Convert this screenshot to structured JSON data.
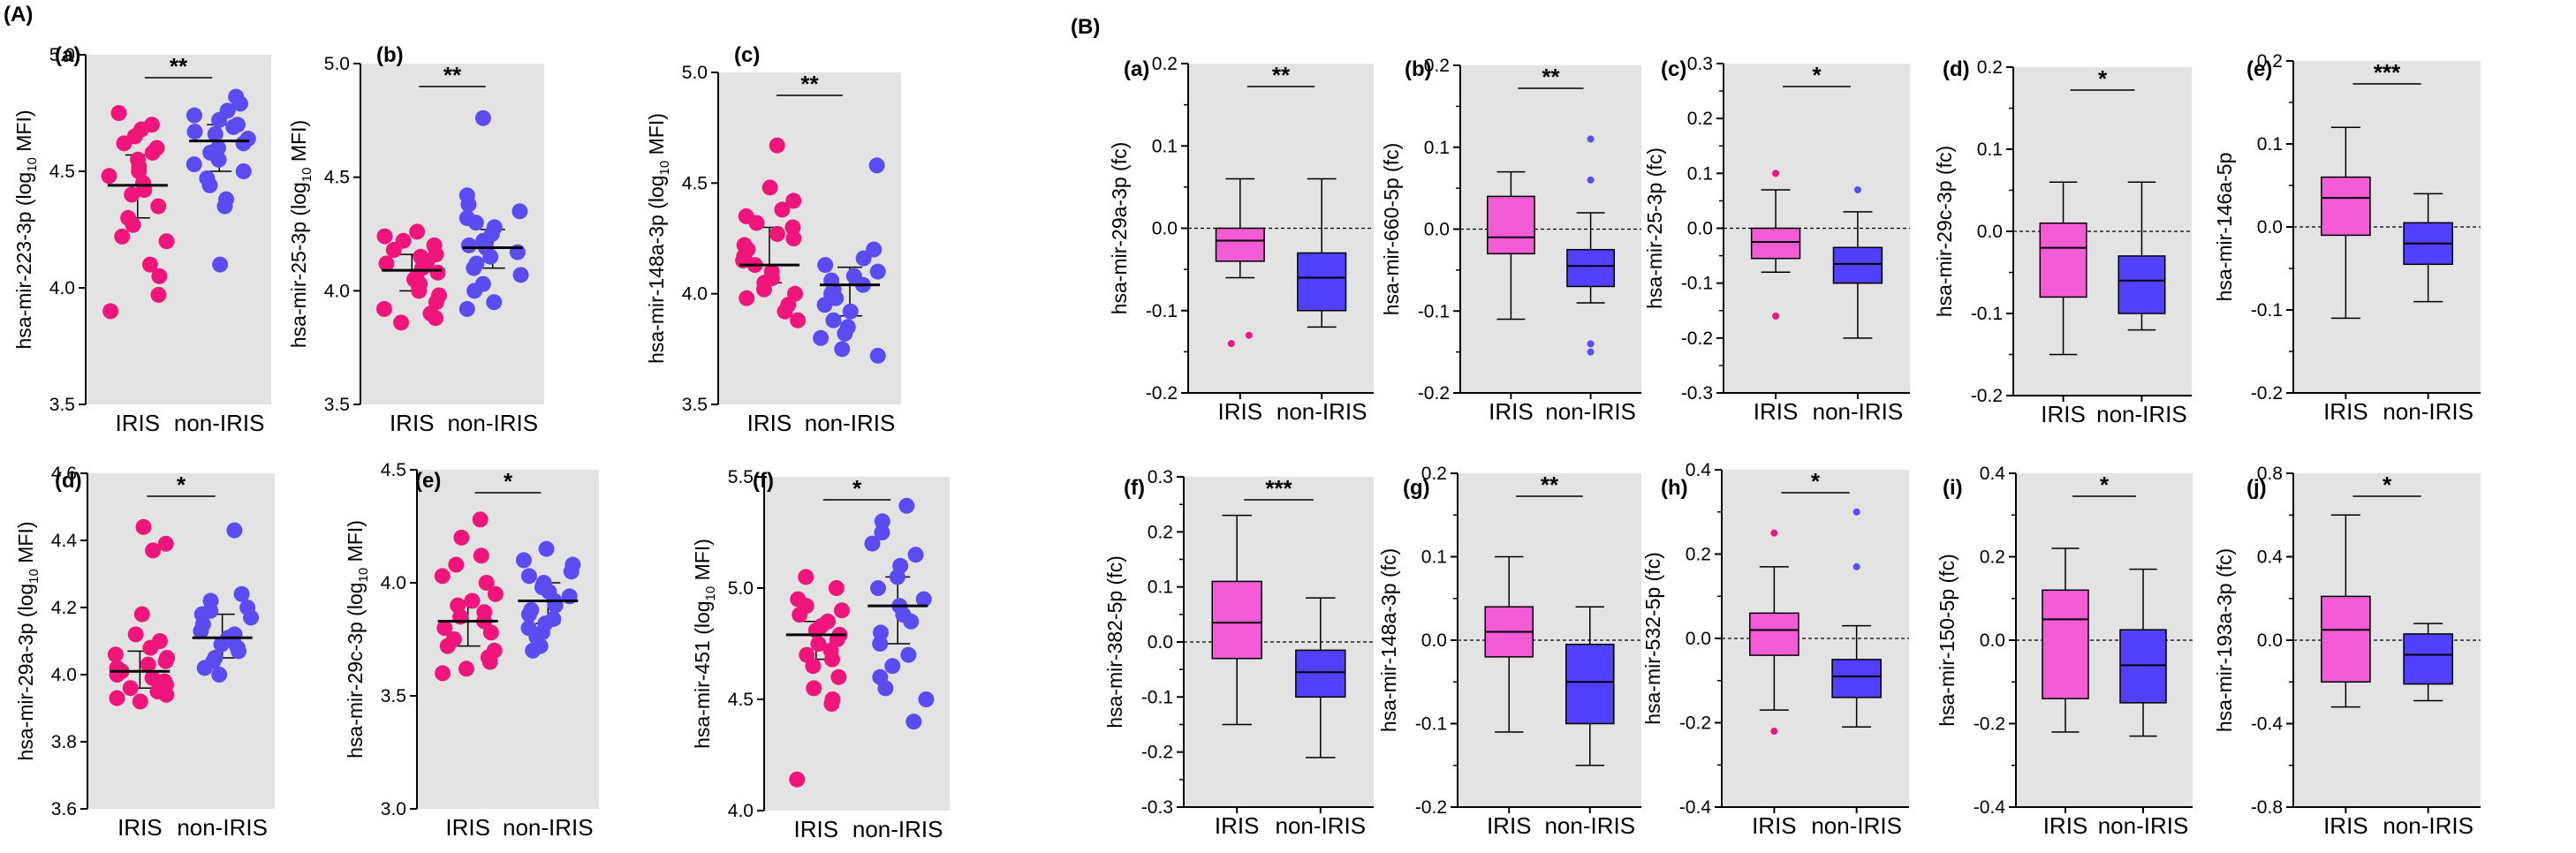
{
  "panels": [
    {
      "id": "A",
      "label": "(A)"
    },
    {
      "id": "B",
      "label": "(B)"
    }
  ],
  "colors": {
    "iris": "#f0157a",
    "non_iris": "#5b4cf2",
    "iris_box": "#f25ad6",
    "non_iris_box": "#5140ff",
    "background": "#e3e3e3"
  },
  "chart_data": [
    {
      "panel": "A",
      "sub": "(a)",
      "type": "scatter",
      "ylabel": "hsa-mir-223-3p (log10 MFI)",
      "ylabel_prefix": "hsa-mir-223-3p (log",
      "ylabel_sub": "10",
      "ylabel_suffix": " MFI)",
      "ylim": [
        3.5,
        5.0
      ],
      "yticks": [
        "3.5",
        "4.0",
        "4.5",
        "5.0"
      ],
      "categories": [
        "IRIS",
        "non-IRIS"
      ],
      "significance": "**",
      "series": [
        {
          "name": "IRIS",
          "median": 4.44,
          "q1": 4.3,
          "q3": 4.57,
          "values": [
            4.75,
            4.7,
            4.68,
            4.65,
            4.62,
            4.6,
            4.58,
            4.55,
            4.52,
            4.5,
            4.48,
            4.45,
            4.42,
            4.4,
            4.35,
            4.3,
            4.27,
            4.22,
            4.2,
            4.1,
            4.05,
            3.97,
            3.9
          ]
        },
        {
          "name": "non-IRIS",
          "median": 4.63,
          "q1": 4.5,
          "q3": 4.7,
          "values": [
            4.82,
            4.79,
            4.76,
            4.74,
            4.72,
            4.7,
            4.69,
            4.67,
            4.66,
            4.64,
            4.62,
            4.6,
            4.58,
            4.55,
            4.53,
            4.5,
            4.47,
            4.44,
            4.38,
            4.35,
            4.1
          ]
        }
      ]
    },
    {
      "panel": "A",
      "sub": "(b)",
      "type": "scatter",
      "ylabel": "hsa-mir-25-3p (log10 MFI)",
      "ylabel_prefix": "hsa-mir-25-3p (log",
      "ylabel_sub": "10",
      "ylabel_suffix": " MFI)",
      "ylim": [
        3.5,
        5.0
      ],
      "yticks": [
        "3.5",
        "4.0",
        "4.5",
        "5.0"
      ],
      "categories": [
        "IRIS",
        "non-IRIS"
      ],
      "significance": "**",
      "series": [
        {
          "name": "IRIS",
          "median": 4.09,
          "q1": 4.0,
          "q3": 4.16,
          "values": [
            4.26,
            4.24,
            4.22,
            4.2,
            4.18,
            4.16,
            4.15,
            4.13,
            4.12,
            4.1,
            4.08,
            4.06,
            4.05,
            4.03,
            4.0,
            3.98,
            3.95,
            3.92,
            3.9,
            3.88,
            3.86
          ]
        },
        {
          "name": "non-IRIS",
          "median": 4.19,
          "q1": 4.1,
          "q3": 4.27,
          "values": [
            4.76,
            4.42,
            4.38,
            4.35,
            4.32,
            4.3,
            4.28,
            4.25,
            4.22,
            4.2,
            4.19,
            4.17,
            4.15,
            4.12,
            4.1,
            4.07,
            4.03,
            4.0,
            3.95,
            3.92
          ]
        }
      ]
    },
    {
      "panel": "A",
      "sub": "(c)",
      "type": "scatter",
      "ylabel": "hsa-mir-148a-3p (log10 MFI)",
      "ylabel_prefix": "hsa-mir-148a-3p (log",
      "ylabel_sub": "10",
      "ylabel_suffix": " MFI)",
      "ylim": [
        3.5,
        5.0
      ],
      "yticks": [
        "3.5",
        "4.0",
        "4.5",
        "5.0"
      ],
      "categories": [
        "IRIS",
        "non-IRIS"
      ],
      "significance": "**",
      "series": [
        {
          "name": "IRIS",
          "median": 4.13,
          "q1": 4.05,
          "q3": 4.3,
          "values": [
            4.67,
            4.48,
            4.42,
            4.38,
            4.35,
            4.32,
            4.3,
            4.27,
            4.25,
            4.22,
            4.2,
            4.17,
            4.15,
            4.13,
            4.1,
            4.07,
            4.05,
            4.02,
            4.0,
            3.98,
            3.95,
            3.92,
            3.88
          ]
        },
        {
          "name": "non-IRIS",
          "median": 4.04,
          "q1": 3.9,
          "q3": 4.12,
          "values": [
            4.58,
            4.2,
            4.16,
            4.13,
            4.1,
            4.08,
            4.06,
            4.04,
            4.02,
            4.0,
            3.98,
            3.95,
            3.92,
            3.88,
            3.85,
            3.82,
            3.8,
            3.75,
            3.72
          ]
        }
      ]
    },
    {
      "panel": "A",
      "sub": "(d)",
      "type": "scatter",
      "ylabel": "hsa-mir-29a-3p (log10 MFI)",
      "ylabel_prefix": "hsa-mir-29a-3p (log",
      "ylabel_sub": "10",
      "ylabel_suffix": " MFI)",
      "ylim": [
        3.6,
        4.6
      ],
      "yticks": [
        "3.6",
        "3.8",
        "4.0",
        "4.2",
        "4.4",
        "4.6"
      ],
      "categories": [
        "IRIS",
        "non-IRIS"
      ],
      "significance": "*",
      "series": [
        {
          "name": "IRIS",
          "median": 4.01,
          "q1": 3.96,
          "q3": 4.07,
          "values": [
            4.44,
            4.39,
            4.37,
            4.18,
            4.12,
            4.1,
            4.08,
            4.06,
            4.05,
            4.04,
            4.03,
            4.02,
            4.01,
            4.0,
            3.99,
            3.98,
            3.97,
            3.96,
            3.95,
            3.94,
            3.93,
            3.92
          ]
        },
        {
          "name": "non-IRIS",
          "median": 4.11,
          "q1": 4.05,
          "q3": 4.18,
          "values": [
            4.43,
            4.24,
            4.22,
            4.2,
            4.19,
            4.18,
            4.17,
            4.15,
            4.13,
            4.12,
            4.11,
            4.1,
            4.09,
            4.08,
            4.07,
            4.05,
            4.04,
            4.02,
            4.0
          ]
        }
      ]
    },
    {
      "panel": "A",
      "sub": "(e)",
      "type": "scatter",
      "ylabel": "hsa-mir-29c-3p (log10 MFI)",
      "ylabel_prefix": "hsa-mir-29c-3p (log",
      "ylabel_sub": "10",
      "ylabel_suffix": " MFI)",
      "ylim": [
        3.0,
        4.5
      ],
      "yticks": [
        "3.0",
        "3.5",
        "4.0",
        "4.5"
      ],
      "categories": [
        "IRIS",
        "non-IRIS"
      ],
      "significance": "*",
      "series": [
        {
          "name": "IRIS",
          "median": 3.83,
          "q1": 3.72,
          "q3": 3.92,
          "values": [
            4.28,
            4.2,
            4.12,
            4.08,
            4.03,
            4.0,
            3.95,
            3.92,
            3.9,
            3.87,
            3.85,
            3.83,
            3.8,
            3.78,
            3.75,
            3.72,
            3.7,
            3.67,
            3.65,
            3.62,
            3.6
          ]
        },
        {
          "name": "non-IRIS",
          "median": 3.92,
          "q1": 3.82,
          "q3": 4.0,
          "values": [
            4.15,
            4.1,
            4.08,
            4.05,
            4.03,
            4.0,
            3.98,
            3.96,
            3.94,
            3.92,
            3.9,
            3.88,
            3.86,
            3.84,
            3.82,
            3.8,
            3.78,
            3.76,
            3.72,
            3.7
          ]
        }
      ]
    },
    {
      "panel": "A",
      "sub": "(f)",
      "type": "scatter",
      "ylabel": "hsa-mir-451 (log10 MFI)",
      "ylabel_prefix": "hsa-mir-451 (log",
      "ylabel_sub": "10",
      "ylabel_suffix": " MFI)",
      "ylim": [
        4.0,
        5.5
      ],
      "yticks": [
        "4.0",
        "4.5",
        "5.0",
        "5.5"
      ],
      "categories": [
        "IRIS",
        "non-IRIS"
      ],
      "significance": "*",
      "series": [
        {
          "name": "IRIS",
          "median": 4.79,
          "q1": 4.68,
          "q3": 4.85,
          "values": [
            5.05,
            5.0,
            4.95,
            4.92,
            4.9,
            4.88,
            4.85,
            4.83,
            4.81,
            4.79,
            4.77,
            4.75,
            4.72,
            4.7,
            4.68,
            4.65,
            4.6,
            4.55,
            4.5,
            4.48,
            4.14
          ]
        },
        {
          "name": "non-IRIS",
          "median": 4.92,
          "q1": 4.75,
          "q3": 5.05,
          "values": [
            5.37,
            5.3,
            5.25,
            5.2,
            5.15,
            5.1,
            5.05,
            5.0,
            4.95,
            4.92,
            4.88,
            4.85,
            4.8,
            4.75,
            4.7,
            4.65,
            4.6,
            4.55,
            4.5,
            4.4
          ]
        }
      ]
    },
    {
      "panel": "B",
      "sub": "(a)",
      "type": "box",
      "ylabel": "hsa-mir-29a-3p (fc)",
      "ylim": [
        -0.2,
        0.2
      ],
      "yticks": [
        "-0.2",
        "-0.1",
        "0.0",
        "0.1",
        "0.2"
      ],
      "categories": [
        "IRIS",
        "non-IRIS"
      ],
      "significance": "**",
      "series": [
        {
          "name": "IRIS",
          "whisker_low": -0.06,
          "q1": -0.04,
          "median": -0.015,
          "q3": 0.0,
          "whisker_high": 0.06,
          "outliers": [
            -0.14,
            -0.13
          ]
        },
        {
          "name": "non-IRIS",
          "whisker_low": -0.12,
          "q1": -0.1,
          "median": -0.06,
          "q3": -0.03,
          "whisker_high": 0.06,
          "outliers": []
        }
      ]
    },
    {
      "panel": "B",
      "sub": "(b)",
      "type": "box",
      "ylabel": "hsa-mir-660-5p (fc)",
      "ylim": [
        -0.2,
        0.2
      ],
      "yticks": [
        "-0.2",
        "-0.1",
        "0.0",
        "0.1",
        "0.2"
      ],
      "categories": [
        "IRIS",
        "non-IRIS"
      ],
      "significance": "**",
      "series": [
        {
          "name": "IRIS",
          "whisker_low": -0.11,
          "q1": -0.03,
          "median": -0.01,
          "q3": 0.04,
          "whisker_high": 0.07,
          "outliers": []
        },
        {
          "name": "non-IRIS",
          "whisker_low": -0.09,
          "q1": -0.07,
          "median": -0.045,
          "q3": -0.025,
          "whisker_high": 0.02,
          "outliers": [
            0.11,
            0.06,
            -0.14,
            -0.15
          ]
        }
      ]
    },
    {
      "panel": "B",
      "sub": "(c)",
      "type": "box",
      "ylabel": "hsa-mir-25-3p (fc)",
      "ylim": [
        -0.3,
        0.3
      ],
      "yticks": [
        "-0.3",
        "-0.2",
        "-0.1",
        "0.0",
        "0.1",
        "0.2",
        "0.3"
      ],
      "categories": [
        "IRIS",
        "non-IRIS"
      ],
      "significance": "*",
      "series": [
        {
          "name": "IRIS",
          "whisker_low": -0.08,
          "q1": -0.055,
          "median": -0.025,
          "q3": 0.0,
          "whisker_high": 0.07,
          "outliers": [
            0.1,
            -0.16
          ]
        },
        {
          "name": "non-IRIS",
          "whisker_low": -0.2,
          "q1": -0.1,
          "median": -0.065,
          "q3": -0.035,
          "whisker_high": 0.03,
          "outliers": [
            0.07
          ]
        }
      ]
    },
    {
      "panel": "B",
      "sub": "(d)",
      "type": "box",
      "ylabel": "hsa-mir-29c-3p (fc)",
      "ylim": [
        -0.2,
        0.2
      ],
      "yticks": [
        "-0.2",
        "-0.1",
        "0.0",
        "0.1",
        "0.2"
      ],
      "categories": [
        "IRIS",
        "non-IRIS"
      ],
      "significance": "*",
      "series": [
        {
          "name": "IRIS",
          "whisker_low": -0.15,
          "q1": -0.08,
          "median": -0.02,
          "q3": 0.01,
          "whisker_high": 0.06,
          "outliers": []
        },
        {
          "name": "non-IRIS",
          "whisker_low": -0.12,
          "q1": -0.1,
          "median": -0.06,
          "q3": -0.03,
          "whisker_high": 0.06,
          "outliers": []
        }
      ]
    },
    {
      "panel": "B",
      "sub": "(e)",
      "type": "box",
      "ylabel": "hsa-mir-146a-5p",
      "ylim": [
        -0.2,
        0.2
      ],
      "yticks": [
        "-0.2",
        "-0.1",
        "0.0",
        "0.1",
        "0.2"
      ],
      "categories": [
        "IRIS",
        "non-IRIS"
      ],
      "significance": "***",
      "series": [
        {
          "name": "IRIS",
          "whisker_low": -0.11,
          "q1": -0.01,
          "median": 0.035,
          "q3": 0.06,
          "whisker_high": 0.12,
          "outliers": []
        },
        {
          "name": "non-IRIS",
          "whisker_low": -0.09,
          "q1": -0.045,
          "median": -0.02,
          "q3": 0.005,
          "whisker_high": 0.04,
          "outliers": []
        }
      ]
    },
    {
      "panel": "B",
      "sub": "(f)",
      "type": "box",
      "ylabel": "hsa-mir-382-5p (fc)",
      "ylim": [
        -0.3,
        0.3
      ],
      "yticks": [
        "-0.3",
        "-0.2",
        "-0.1",
        "0.0",
        "0.1",
        "0.2",
        "0.3"
      ],
      "categories": [
        "IRIS",
        "non-IRIS"
      ],
      "significance": "***",
      "series": [
        {
          "name": "IRIS",
          "whisker_low": -0.15,
          "q1": -0.03,
          "median": 0.035,
          "q3": 0.11,
          "whisker_high": 0.23,
          "outliers": []
        },
        {
          "name": "non-IRIS",
          "whisker_low": -0.21,
          "q1": -0.1,
          "median": -0.055,
          "q3": -0.015,
          "whisker_high": 0.08,
          "outliers": []
        }
      ]
    },
    {
      "panel": "B",
      "sub": "(g)",
      "type": "box",
      "ylabel": "hsa-mir-148a-3p (fc)",
      "ylim": [
        -0.2,
        0.2
      ],
      "yticks": [
        "-0.2",
        "-0.1",
        "0.0",
        "0.1",
        "0.2"
      ],
      "categories": [
        "IRIS",
        "non-IRIS"
      ],
      "significance": "**",
      "series": [
        {
          "name": "IRIS",
          "whisker_low": -0.11,
          "q1": -0.02,
          "median": 0.01,
          "q3": 0.04,
          "whisker_high": 0.1,
          "outliers": []
        },
        {
          "name": "non-IRIS",
          "whisker_low": -0.15,
          "q1": -0.1,
          "median": -0.05,
          "q3": -0.005,
          "whisker_high": 0.04,
          "outliers": []
        }
      ]
    },
    {
      "panel": "B",
      "sub": "(h)",
      "type": "box",
      "ylabel": "hsa-mir-532-5p (fc)",
      "ylim": [
        -0.4,
        0.4
      ],
      "yticks": [
        "-0.4",
        "-0.2",
        "0.0",
        "0.2",
        "0.4"
      ],
      "categories": [
        "IRIS",
        "non-IRIS"
      ],
      "significance": "*",
      "series": [
        {
          "name": "IRIS",
          "whisker_low": -0.17,
          "q1": -0.04,
          "median": 0.02,
          "q3": 0.06,
          "whisker_high": 0.17,
          "outliers": [
            0.25,
            -0.22
          ]
        },
        {
          "name": "non-IRIS",
          "whisker_low": -0.21,
          "q1": -0.14,
          "median": -0.09,
          "q3": -0.05,
          "whisker_high": 0.03,
          "outliers": [
            0.3,
            0.17
          ]
        }
      ]
    },
    {
      "panel": "B",
      "sub": "(i)",
      "type": "box",
      "ylabel": "hsa-mir-150-5p (fc)",
      "ylim": [
        -0.4,
        0.4
      ],
      "yticks": [
        "-0.4",
        "-0.2",
        "0.0",
        "0.2",
        "0.4"
      ],
      "categories": [
        "IRIS",
        "non-IRIS"
      ],
      "significance": "*",
      "series": [
        {
          "name": "IRIS",
          "whisker_low": -0.22,
          "q1": -0.14,
          "median": 0.05,
          "q3": 0.12,
          "whisker_high": 0.22,
          "outliers": []
        },
        {
          "name": "non-IRIS",
          "whisker_low": -0.23,
          "q1": -0.15,
          "median": -0.06,
          "q3": 0.025,
          "whisker_high": 0.17,
          "outliers": []
        }
      ]
    },
    {
      "panel": "B",
      "sub": "(j)",
      "type": "box",
      "ylabel": "hsa-mir-193a-3p (fc)",
      "ylim": [
        -0.8,
        0.8
      ],
      "yticks": [
        "-0.8",
        "-0.4",
        "0.0",
        "0.4",
        "0.8"
      ],
      "categories": [
        "IRIS",
        "non-IRIS"
      ],
      "significance": "*",
      "series": [
        {
          "name": "IRIS",
          "whisker_low": -0.32,
          "q1": -0.2,
          "median": 0.05,
          "q3": 0.21,
          "whisker_high": 0.6,
          "outliers": []
        },
        {
          "name": "non-IRIS",
          "whisker_low": -0.29,
          "q1": -0.21,
          "median": -0.07,
          "q3": 0.03,
          "whisker_high": 0.08,
          "outliers": []
        }
      ]
    }
  ]
}
